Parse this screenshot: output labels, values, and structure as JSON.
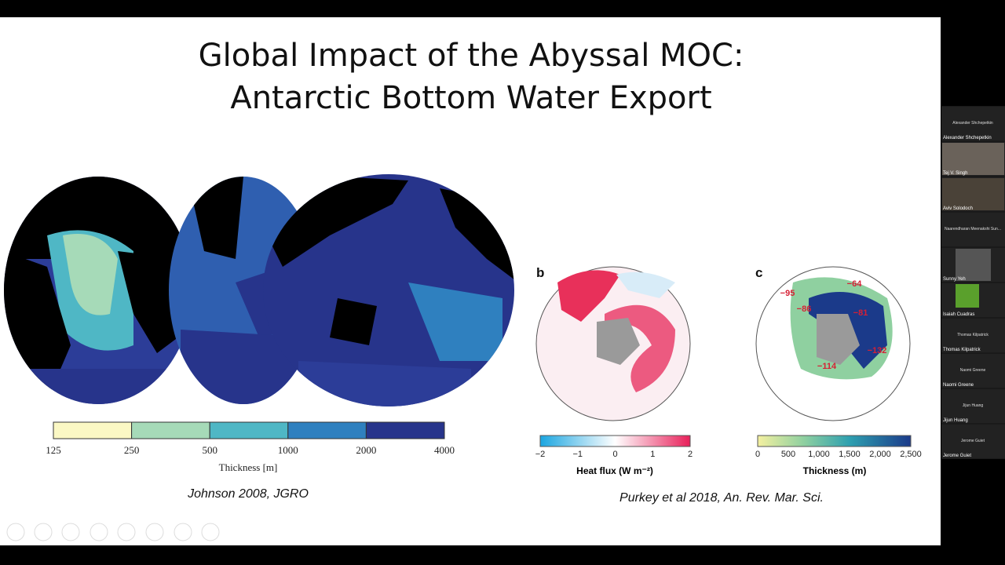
{
  "slide": {
    "title_lines": [
      "Global Impact of the Abyssal MOC:",
      "Antarctic Bottom Water Export"
    ],
    "left_figure": {
      "colorbar_ticks": [
        125,
        250,
        500,
        1000,
        2000,
        4000
      ],
      "colorbar_label": "Thickness [m]",
      "citation": "Johnson 2008, JGRO"
    },
    "right_figure": {
      "panel_b": {
        "label": "b",
        "colorbar_ticks": [
          "−2",
          "−1",
          0,
          1,
          2
        ],
        "colorbar_label": "Heat flux (W m⁻²)"
      },
      "panel_c": {
        "label": "c",
        "annotations": [
          "−95",
          "−86",
          "−64",
          "−81",
          "−132",
          "−114"
        ],
        "colorbar_ticks": [
          0,
          500,
          "1,000",
          "1,500",
          "2,000",
          "2,500"
        ],
        "colorbar_label": "Thickness (m)"
      },
      "citation": "Purkey et al 2018, An. Rev. Mar. Sci."
    }
  },
  "participants": [
    {
      "center": "Alexander Shchepetkin",
      "label": "Alexander Shchepetkin"
    },
    {
      "label": "Tej V. Singh"
    },
    {
      "label": "Aviv Solodoch"
    },
    {
      "center": "Naarendharan Meenakshi Sun..."
    },
    {
      "label": "Sunny Yeh"
    },
    {
      "label": "Isaiah Cuadras"
    },
    {
      "center": "Thomas Kilpatrick",
      "label": "Thomas Kilpatrick"
    },
    {
      "center": "Naomi Greene",
      "label": "Naomi Greene"
    },
    {
      "center": "Jijun Huang",
      "label": "Jijun Huang"
    },
    {
      "center": "Jerome Guiet",
      "label": "Jerome Guiet"
    }
  ]
}
